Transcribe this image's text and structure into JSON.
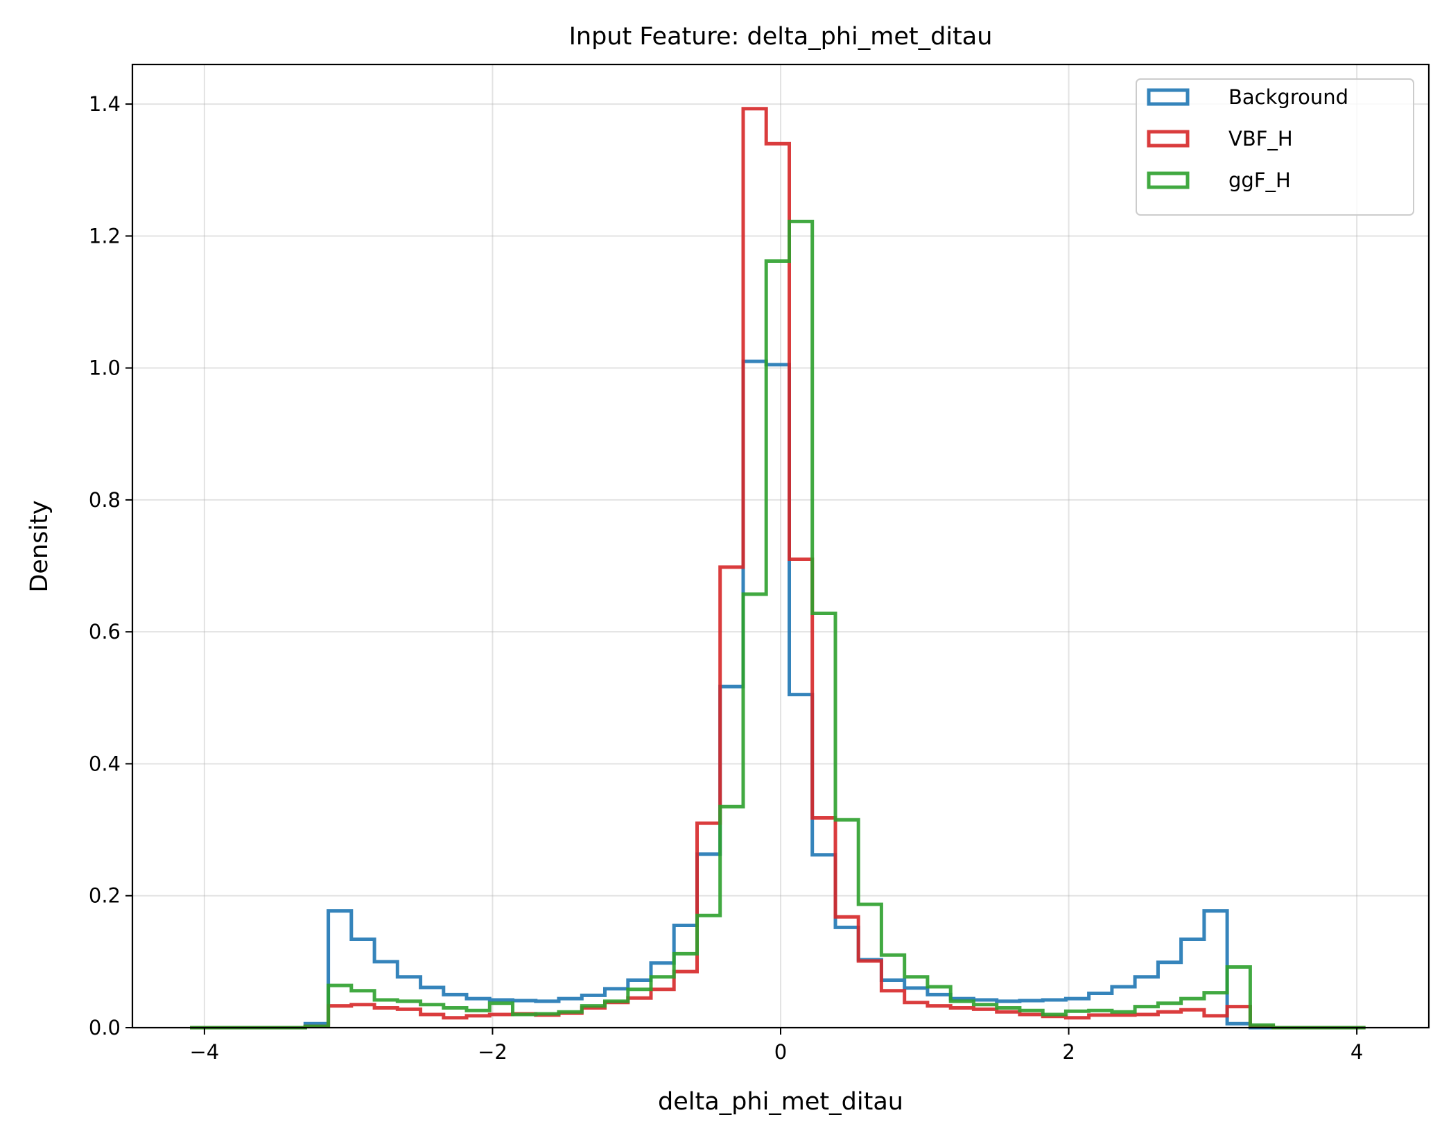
{
  "chart_data": {
    "type": "histogram-step",
    "title": "Input Feature: delta_phi_met_ditau",
    "xlabel": "delta_phi_met_ditau",
    "ylabel": "Density",
    "xlim": [
      -4.5,
      4.5
    ],
    "ylim": [
      0,
      1.46
    ],
    "xticks": [
      -4,
      -2,
      0,
      2,
      4
    ],
    "xtick_labels": [
      "−4",
      "−2",
      "0",
      "2",
      "4"
    ],
    "yticks": [
      0.0,
      0.2,
      0.4,
      0.6,
      0.8,
      1.0,
      1.2,
      1.4
    ],
    "ytick_labels": [
      "0.0",
      "0.2",
      "0.4",
      "0.6",
      "0.8",
      "1.0",
      "1.2",
      "1.4"
    ],
    "grid": true,
    "legend_position": "top-right",
    "bin_edges": [
      -4.1,
      -3.94,
      -3.78,
      -3.62,
      -3.46,
      -3.3,
      -3.14,
      -2.98,
      -2.82,
      -2.66,
      -2.5,
      -2.34,
      -2.18,
      -2.02,
      -1.86,
      -1.7,
      -1.54,
      -1.38,
      -1.22,
      -1.06,
      -0.9,
      -0.74,
      -0.58,
      -0.42,
      -0.26,
      -0.1,
      0.06,
      0.22,
      0.38,
      0.54,
      0.7,
      0.86,
      1.02,
      1.18,
      1.34,
      1.5,
      1.66,
      1.82,
      1.98,
      2.14,
      2.3,
      2.46,
      2.62,
      2.78,
      2.94,
      3.1,
      3.26,
      3.42,
      3.58,
      3.74,
      3.9,
      4.06
    ],
    "series": [
      {
        "name": "Background",
        "color": "#1f77b4",
        "values": [
          0,
          0,
          0,
          0,
          0,
          0.006,
          0.177,
          0.134,
          0.1,
          0.077,
          0.061,
          0.05,
          0.044,
          0.042,
          0.041,
          0.04,
          0.044,
          0.049,
          0.059,
          0.072,
          0.098,
          0.155,
          0.263,
          0.517,
          1.01,
          1.005,
          0.505,
          0.262,
          0.152,
          0.103,
          0.072,
          0.06,
          0.05,
          0.044,
          0.042,
          0.04,
          0.041,
          0.042,
          0.044,
          0.052,
          0.062,
          0.077,
          0.099,
          0.134,
          0.177,
          0.006,
          0,
          0,
          0,
          0,
          0
        ]
      },
      {
        "name": "VBF_H",
        "color": "#d62728",
        "values": [
          0,
          0,
          0,
          0,
          0,
          0.002,
          0.033,
          0.035,
          0.03,
          0.028,
          0.02,
          0.015,
          0.018,
          0.02,
          0.021,
          0.019,
          0.022,
          0.03,
          0.038,
          0.045,
          0.058,
          0.085,
          0.31,
          0.698,
          1.393,
          1.34,
          0.71,
          0.318,
          0.168,
          0.101,
          0.056,
          0.038,
          0.033,
          0.03,
          0.028,
          0.024,
          0.02,
          0.017,
          0.015,
          0.019,
          0.019,
          0.02,
          0.024,
          0.027,
          0.018,
          0.032,
          0.002,
          0,
          0,
          0,
          0
        ]
      },
      {
        "name": "ggF_H",
        "color": "#2ca02c",
        "values": [
          0,
          0,
          0,
          0,
          0,
          0.002,
          0.064,
          0.056,
          0.042,
          0.04,
          0.035,
          0.03,
          0.026,
          0.037,
          0.02,
          0.021,
          0.024,
          0.033,
          0.04,
          0.058,
          0.077,
          0.112,
          0.17,
          0.335,
          0.657,
          1.162,
          1.222,
          0.628,
          0.315,
          0.187,
          0.11,
          0.077,
          0.062,
          0.04,
          0.035,
          0.03,
          0.026,
          0.02,
          0.025,
          0.026,
          0.024,
          0.032,
          0.037,
          0.044,
          0.053,
          0.092,
          0.004,
          0,
          0,
          0,
          0
        ]
      }
    ]
  }
}
